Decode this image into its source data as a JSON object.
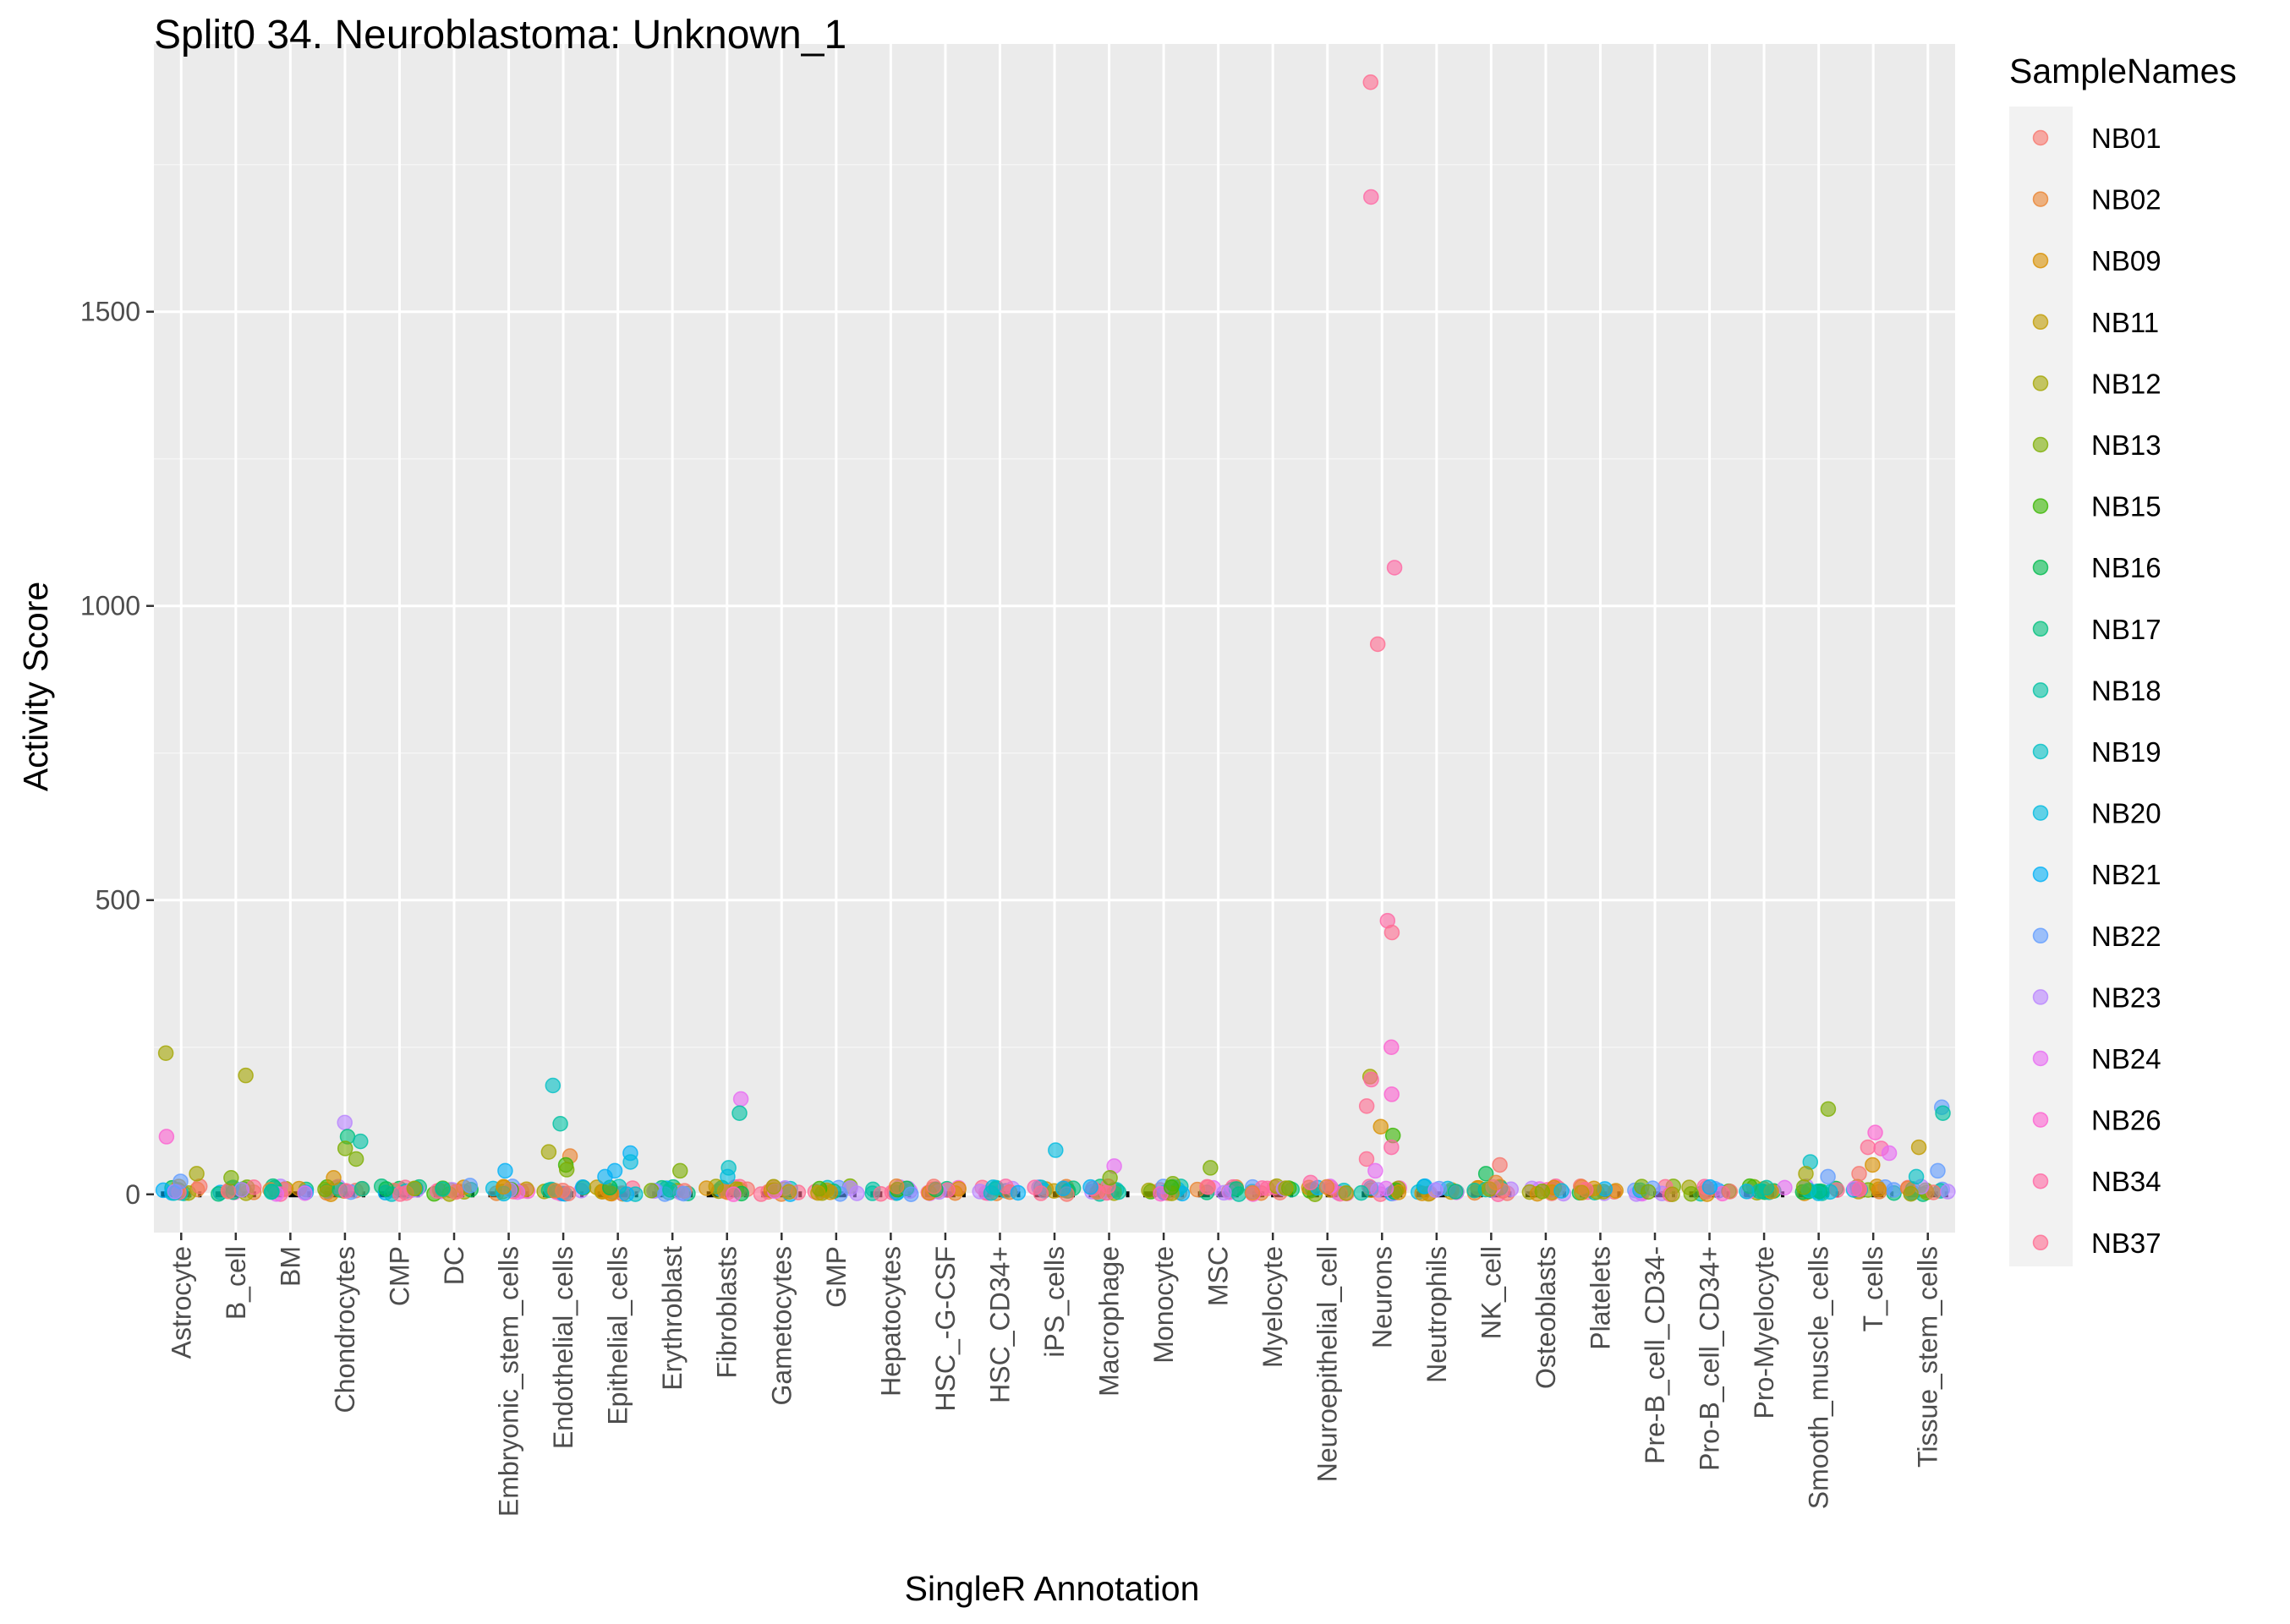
{
  "chart_data": {
    "type": "scatter",
    "title": "Split0 34. Neuroblastoma: Unknown_1",
    "xlabel": "SingleR Annotation",
    "ylabel": "Activity Score",
    "ylim": [
      -65,
      1955
    ],
    "yticks": [
      0,
      500,
      1000,
      1500
    ],
    "grid": true,
    "legend": {
      "title": "SampleNames",
      "position": "right"
    },
    "categories": [
      "Astrocyte",
      "B_cell",
      "BM",
      "Chondrocytes",
      "CMP",
      "DC",
      "Embryonic_stem_cells",
      "Endothelial_cells",
      "Epithelial_cells",
      "Erythroblast",
      "Fibroblasts",
      "Gametocytes",
      "GMP",
      "Hepatocytes",
      "HSC_-G-CSF",
      "HSC_CD34+",
      "iPS_cells",
      "Macrophage",
      "Monocyte",
      "MSC",
      "Myelocyte",
      "Neuroepithelial_cell",
      "Neurons",
      "Neutrophils",
      "NK_cell",
      "Osteoblasts",
      "Platelets",
      "Pre-B_cell_CD34-",
      "Pro-B_cell_CD34+",
      "Pro-Myelocyte",
      "Smooth_muscle_cells",
      "T_cells",
      "Tissue_stem_cells"
    ],
    "series": [
      {
        "name": "NB01",
        "color": "#F8766D"
      },
      {
        "name": "NB02",
        "color": "#EA8331"
      },
      {
        "name": "NB09",
        "color": "#D89000"
      },
      {
        "name": "NB11",
        "color": "#C09B00"
      },
      {
        "name": "NB12",
        "color": "#A3A500"
      },
      {
        "name": "NB13",
        "color": "#7CAE00"
      },
      {
        "name": "NB15",
        "color": "#39B600"
      },
      {
        "name": "NB16",
        "color": "#00BB4E"
      },
      {
        "name": "NB17",
        "color": "#00BF7D"
      },
      {
        "name": "NB18",
        "color": "#00C1A3"
      },
      {
        "name": "NB19",
        "color": "#00BFC4"
      },
      {
        "name": "NB20",
        "color": "#00BAE0"
      },
      {
        "name": "NB21",
        "color": "#00B0F6"
      },
      {
        "name": "NB22",
        "color": "#619CFF"
      },
      {
        "name": "NB23",
        "color": "#B983FF"
      },
      {
        "name": "NB24",
        "color": "#E76BF3"
      },
      {
        "name": "NB26",
        "color": "#FD61D1"
      },
      {
        "name": "NB34",
        "color": "#FF67A4"
      },
      {
        "name": "NB37",
        "color": "#FF6C91"
      }
    ],
    "points": [
      {
        "category": "Astrocyte",
        "y": 240,
        "series": "NB12"
      },
      {
        "category": "Astrocyte",
        "y": 98,
        "series": "NB26"
      },
      {
        "category": "Astrocyte",
        "y": 35,
        "series": "NB12"
      },
      {
        "category": "Astrocyte",
        "y": 22,
        "series": "NB22"
      },
      {
        "category": "B_cell",
        "y": 202,
        "series": "NB12"
      },
      {
        "category": "B_cell",
        "y": 28,
        "series": "NB13"
      },
      {
        "category": "Chondrocytes",
        "y": 122,
        "series": "NB23"
      },
      {
        "category": "Chondrocytes",
        "y": 98,
        "series": "NB17"
      },
      {
        "category": "Chondrocytes",
        "y": 90,
        "series": "NB18"
      },
      {
        "category": "Chondrocytes",
        "y": 78,
        "series": "NB13"
      },
      {
        "category": "Chondrocytes",
        "y": 60,
        "series": "NB13"
      },
      {
        "category": "Chondrocytes",
        "y": 28,
        "series": "NB09"
      },
      {
        "category": "CMP",
        "y": 10,
        "series": "NB12"
      },
      {
        "category": "DC",
        "y": 15,
        "series": "NB22"
      },
      {
        "category": "Embryonic_stem_cells",
        "y": 40,
        "series": "NB21"
      },
      {
        "category": "Endothelial_cells",
        "y": 185,
        "series": "NB19"
      },
      {
        "category": "Endothelial_cells",
        "y": 120,
        "series": "NB18"
      },
      {
        "category": "Endothelial_cells",
        "y": 72,
        "series": "NB12"
      },
      {
        "category": "Endothelial_cells",
        "y": 65,
        "series": "NB02"
      },
      {
        "category": "Endothelial_cells",
        "y": 50,
        "series": "NB15"
      },
      {
        "category": "Endothelial_cells",
        "y": 42,
        "series": "NB13"
      },
      {
        "category": "Epithelial_cells",
        "y": 70,
        "series": "NB21"
      },
      {
        "category": "Epithelial_cells",
        "y": 55,
        "series": "NB20"
      },
      {
        "category": "Epithelial_cells",
        "y": 40,
        "series": "NB21"
      },
      {
        "category": "Epithelial_cells",
        "y": 30,
        "series": "NB21"
      },
      {
        "category": "Erythroblast",
        "y": 40,
        "series": "NB13"
      },
      {
        "category": "Fibroblasts",
        "y": 162,
        "series": "NB24"
      },
      {
        "category": "Fibroblasts",
        "y": 138,
        "series": "NB18"
      },
      {
        "category": "Fibroblasts",
        "y": 45,
        "series": "NB19"
      },
      {
        "category": "Fibroblasts",
        "y": 30,
        "series": "NB20"
      },
      {
        "category": "iPS_cells",
        "y": 75,
        "series": "NB20"
      },
      {
        "category": "iPS_cells",
        "y": 10,
        "series": "NB21"
      },
      {
        "category": "Macrophage",
        "y": 48,
        "series": "NB24"
      },
      {
        "category": "Macrophage",
        "y": 28,
        "series": "NB13"
      },
      {
        "category": "Monocyte",
        "y": 18,
        "series": "NB13"
      },
      {
        "category": "Monocyte",
        "y": 12,
        "series": "NB15"
      },
      {
        "category": "MSC",
        "y": 45,
        "series": "NB13"
      },
      {
        "category": "Neuroepithelial_cell",
        "y": 20,
        "series": "NB34"
      },
      {
        "category": "Neurons",
        "y": 1890,
        "series": "NB37"
      },
      {
        "category": "Neurons",
        "y": 1695,
        "series": "NB34"
      },
      {
        "category": "Neurons",
        "y": 1065,
        "series": "NB34"
      },
      {
        "category": "Neurons",
        "y": 935,
        "series": "NB37"
      },
      {
        "category": "Neurons",
        "y": 465,
        "series": "NB34"
      },
      {
        "category": "Neurons",
        "y": 445,
        "series": "NB37"
      },
      {
        "category": "Neurons",
        "y": 250,
        "series": "NB26"
      },
      {
        "category": "Neurons",
        "y": 200,
        "series": "NB12"
      },
      {
        "category": "Neurons",
        "y": 195,
        "series": "NB34"
      },
      {
        "category": "Neurons",
        "y": 170,
        "series": "NB26"
      },
      {
        "category": "Neurons",
        "y": 150,
        "series": "NB37"
      },
      {
        "category": "Neurons",
        "y": 115,
        "series": "NB09"
      },
      {
        "category": "Neurons",
        "y": 100,
        "series": "NB15"
      },
      {
        "category": "Neurons",
        "y": 80,
        "series": "NB34"
      },
      {
        "category": "Neurons",
        "y": 60,
        "series": "NB37"
      },
      {
        "category": "Neurons",
        "y": 40,
        "series": "NB24"
      },
      {
        "category": "NK_cell",
        "y": 50,
        "series": "NB01"
      },
      {
        "category": "NK_cell",
        "y": 35,
        "series": "NB16"
      },
      {
        "category": "NK_cell",
        "y": 20,
        "series": "NB02"
      },
      {
        "category": "Osteoblasts",
        "y": 5,
        "series": "NB13"
      },
      {
        "category": "Smooth_muscle_cells",
        "y": 145,
        "series": "NB13"
      },
      {
        "category": "Smooth_muscle_cells",
        "y": 55,
        "series": "NB19"
      },
      {
        "category": "Smooth_muscle_cells",
        "y": 35,
        "series": "NB12"
      },
      {
        "category": "Smooth_muscle_cells",
        "y": 30,
        "series": "NB22"
      },
      {
        "category": "T_cells",
        "y": 105,
        "series": "NB26"
      },
      {
        "category": "T_cells",
        "y": 80,
        "series": "NB37"
      },
      {
        "category": "T_cells",
        "y": 78,
        "series": "NB34"
      },
      {
        "category": "T_cells",
        "y": 70,
        "series": "NB24"
      },
      {
        "category": "T_cells",
        "y": 50,
        "series": "NB09"
      },
      {
        "category": "T_cells",
        "y": 35,
        "series": "NB01"
      },
      {
        "category": "Tissue_stem_cells",
        "y": 148,
        "series": "NB22"
      },
      {
        "category": "Tissue_stem_cells",
        "y": 138,
        "series": "NB18"
      },
      {
        "category": "Tissue_stem_cells",
        "y": 80,
        "series": "NB11"
      },
      {
        "category": "Tissue_stem_cells",
        "y": 40,
        "series": "NB22"
      },
      {
        "category": "Tissue_stem_cells",
        "y": 30,
        "series": "NB19"
      }
    ]
  }
}
